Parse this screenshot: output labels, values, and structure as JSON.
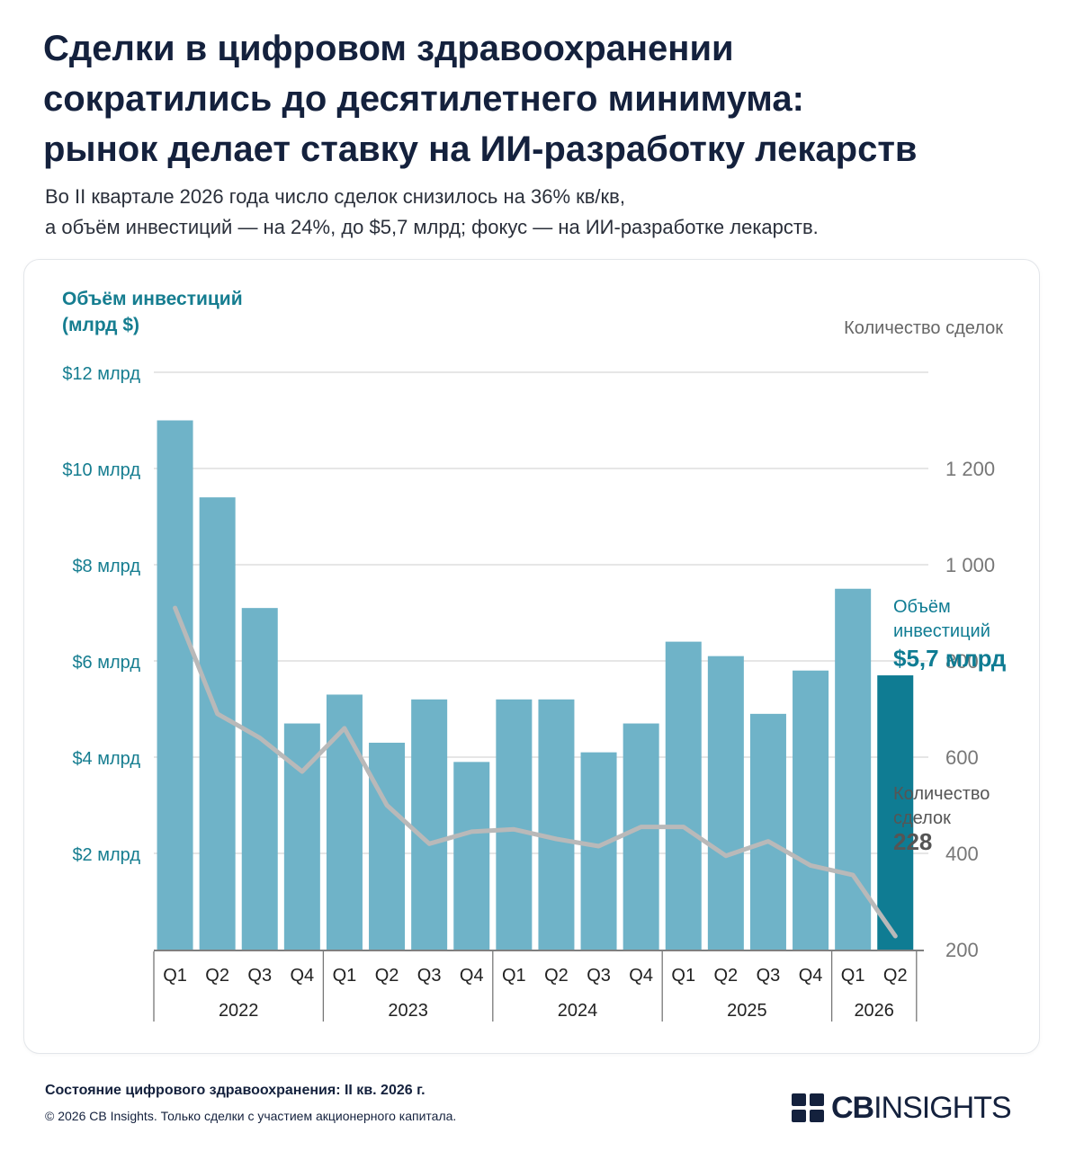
{
  "header": {
    "title_lines": [
      "Сделки в цифровом здравоохранении",
      "сократились до десятилетнего минимума:",
      "рынок делает ставку на ИИ-разработку лекарств"
    ],
    "subtitle_lines": [
      "Во II квартале 2026 года число сделок снизилось на 36% кв/кв,",
      "а объём инвестиций — на 24%, до $5,7 млрд; фокус — на ИИ-разработке лекарств."
    ]
  },
  "colors": {
    "bar": "#6fb3c8",
    "bar_highlight": "#0f7c93",
    "line": "#b9b9b9",
    "left_axis": "#157d90",
    "right_axis": "#777777",
    "grid": "#dddddd"
  },
  "chart_data": {
    "type": "bar",
    "left_axis_title_lines": [
      "Объём инвестиций",
      "(млрд $)"
    ],
    "right_axis_title": "Количество сделок",
    "left_ticks": [
      "$2 млрд",
      "$4 млрд",
      "$6 млрд",
      "$8 млрд",
      "$10 млрд",
      "$12 млрд"
    ],
    "left_tick_values": [
      2,
      4,
      6,
      8,
      10,
      12
    ],
    "right_ticks": [
      "200",
      "400",
      "600",
      "800",
      "1 000",
      "1 200"
    ],
    "right_tick_values": [
      200,
      400,
      600,
      800,
      1000,
      1200
    ],
    "ylim_left": [
      0,
      12
    ],
    "categories": [
      "Q1",
      "Q2",
      "Q3",
      "Q4",
      "Q1",
      "Q2",
      "Q3",
      "Q4",
      "Q1",
      "Q2",
      "Q3",
      "Q4",
      "Q1",
      "Q2",
      "Q3",
      "Q4",
      "Q1",
      "Q2"
    ],
    "year_groups": [
      {
        "label": "2022",
        "count": 4
      },
      {
        "label": "2023",
        "count": 4
      },
      {
        "label": "2024",
        "count": 4
      },
      {
        "label": "2025",
        "count": 4
      },
      {
        "label": "2026",
        "count": 2
      }
    ],
    "series": [
      {
        "kind": "bar",
        "axis": "left",
        "values": [
          11.0,
          9.4,
          7.1,
          4.7,
          5.3,
          4.3,
          5.2,
          3.9,
          5.2,
          5.2,
          4.1,
          4.7,
          6.4,
          6.1,
          4.9,
          5.8,
          7.5,
          5.7
        ]
      },
      {
        "kind": "line",
        "axis": "right",
        "values": [
          910,
          690,
          640,
          570,
          660,
          500,
          420,
          445,
          450,
          430,
          415,
          455,
          455,
          395,
          425,
          375,
          355,
          228
        ]
      }
    ],
    "highlight_index": 17,
    "annotations": {
      "investment": {
        "lines": [
          "Объём",
          "инвестиций"
        ],
        "value": "$5,7 млрд"
      },
      "deals": {
        "lines": [
          "Количество",
          "сделок"
        ],
        "value": "228"
      }
    }
  },
  "footer": {
    "source_title": "Состояние цифрового здравоохранения: II кв. 2026 г.",
    "note": "© 2026 CB Insights. Только сделки с участием акционерного капитала."
  },
  "logo": {
    "cb": "CB",
    "insights": "INSIGHTS"
  }
}
